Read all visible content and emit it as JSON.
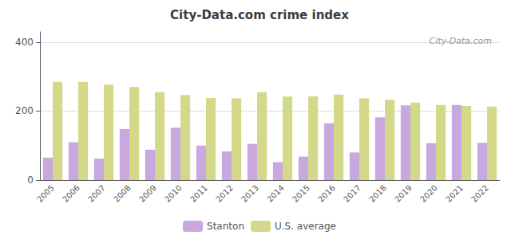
{
  "chart_data": {
    "type": "bar",
    "title": "City-Data.com crime index",
    "categories": [
      "2005",
      "2006",
      "2007",
      "2008",
      "2009",
      "2010",
      "2011",
      "2012",
      "2013",
      "2014",
      "2015",
      "2016",
      "2017",
      "2018",
      "2019",
      "2020",
      "2021",
      "2022"
    ],
    "series": [
      {
        "name": "Stanton",
        "color": "#c9a8e0",
        "values": [
          65,
          110,
          62,
          148,
          88,
          152,
          100,
          83,
          105,
          52,
          68,
          165,
          80,
          182,
          217,
          107,
          218,
          108
        ]
      },
      {
        "name": "U.S. average",
        "color": "#d4d98a",
        "values": [
          285,
          285,
          277,
          270,
          255,
          247,
          238,
          237,
          255,
          242,
          243,
          248,
          237,
          233,
          225,
          218,
          215,
          213
        ]
      }
    ],
    "ylim": [
      0,
      430
    ],
    "yticks": [
      0,
      200,
      400
    ],
    "grid": true,
    "legend": "bottom",
    "annotations": [
      "City-Data.com"
    ]
  }
}
